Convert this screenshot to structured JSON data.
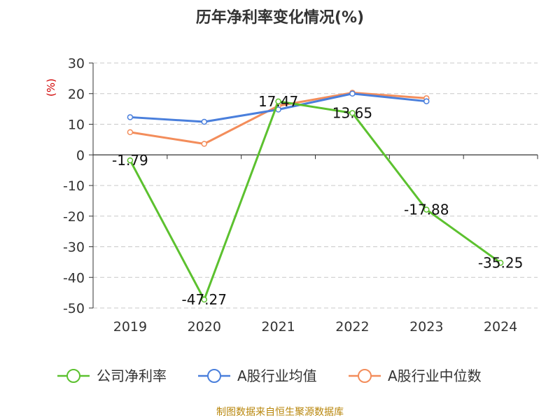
{
  "chart_data": {
    "type": "line",
    "title": "历年净利率变化情况(%)",
    "ylabel": "(%)",
    "xlabel": "",
    "categories": [
      "2019",
      "2020",
      "2021",
      "2022",
      "2023",
      "2024"
    ],
    "ylim": [
      -50,
      30
    ],
    "yticks": [
      30,
      20,
      10,
      0,
      -10,
      -20,
      -30,
      -40,
      -50
    ],
    "grid": true,
    "legend_position": "bottom",
    "series": [
      {
        "name": "公司净利率",
        "color": "#5cc12f",
        "values": [
          -1.79,
          -47.27,
          17.47,
          13.65,
          -17.88,
          -35.25
        ],
        "labels": [
          "-1.79",
          "-47.27",
          "17.47",
          "13.65",
          "-17.88",
          "-35.25"
        ]
      },
      {
        "name": "A股行业均值",
        "color": "#4a7fdc",
        "values": [
          12.3,
          10.8,
          14.8,
          20.0,
          17.5,
          null
        ]
      },
      {
        "name": "A股行业中位数",
        "color": "#f38d5b",
        "values": [
          7.4,
          3.6,
          16.0,
          20.3,
          18.5,
          null
        ]
      }
    ],
    "source": "制图数据来自恒生聚源数据库"
  }
}
